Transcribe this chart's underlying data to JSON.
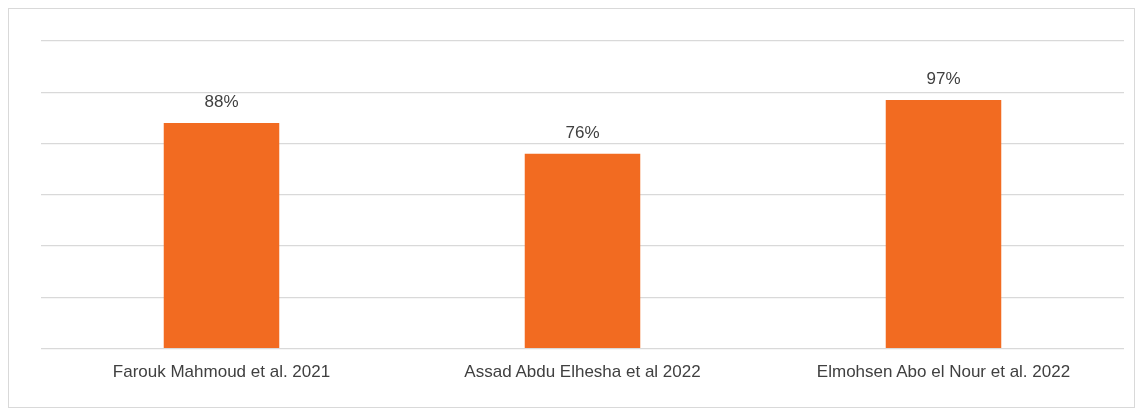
{
  "chart_data": {
    "type": "bar",
    "categories": [
      "Farouk Mahmoud et al. 2021",
      "Assad Abdu Elhesha et al 2022",
      "Elmohsen Abo el Nour et al. 2022"
    ],
    "values": [
      88,
      76,
      97
    ],
    "color": "#f26b21",
    "value_labels": [
      "88%",
      "76%",
      "97%"
    ],
    "ylim": [
      0,
      120
    ],
    "yticks": [
      {
        "value": 0,
        "label": null
      },
      {
        "value": 20,
        "label": null
      },
      {
        "value": 40,
        "label": null
      },
      {
        "value": 60,
        "label": null
      },
      {
        "value": 80,
        "label": null
      },
      {
        "value": 100,
        "label": null
      },
      {
        "value": 120,
        "label": null
      }
    ],
    "grid": "y",
    "tick_labels": "x"
  }
}
